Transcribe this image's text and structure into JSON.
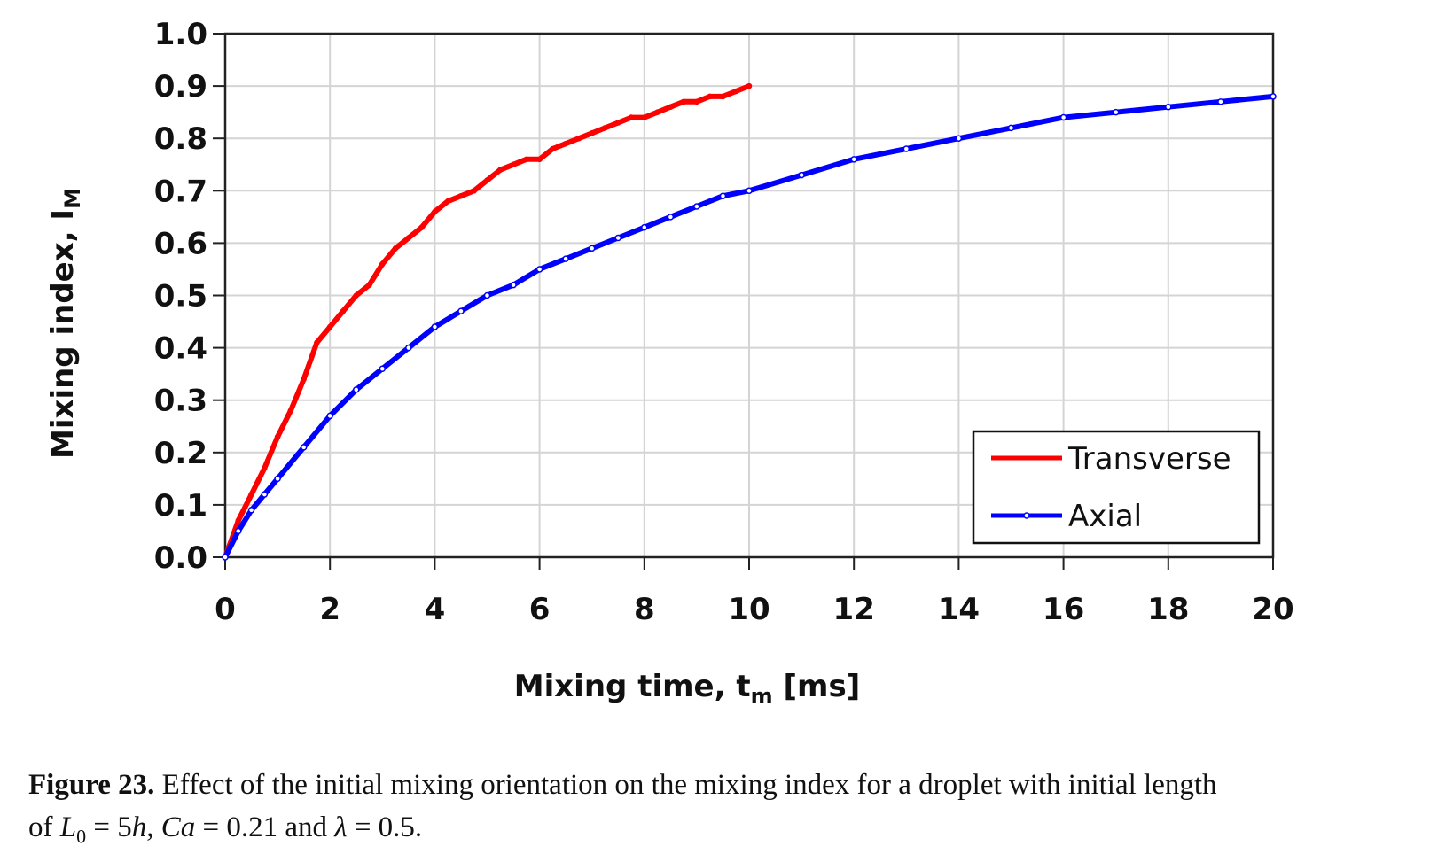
{
  "chart_data": {
    "type": "line",
    "xlabel": "Mixing time, t",
    "xlabel_sub": "m",
    "xlabel_unit": "[ms]",
    "ylabel": "Mixing index, I",
    "ylabel_sub": "M",
    "xlim": [
      0,
      20
    ],
    "ylim": [
      0,
      1.0
    ],
    "x_ticks": [
      "0",
      "2",
      "4",
      "6",
      "8",
      "10",
      "12",
      "14",
      "16",
      "18",
      "20"
    ],
    "y_ticks": [
      "0.0",
      "0.1",
      "0.2",
      "0.3",
      "0.4",
      "0.5",
      "0.6",
      "0.7",
      "0.8",
      "0.9",
      "1.0"
    ],
    "grid": true,
    "legend_position": "lower-right",
    "series": [
      {
        "name": "Transverse",
        "color": "#ff0000",
        "x": [
          0,
          0.25,
          0.5,
          0.75,
          1.0,
          1.25,
          1.5,
          1.75,
          2.0,
          2.25,
          2.5,
          2.75,
          3.0,
          3.25,
          3.5,
          3.75,
          4.0,
          4.25,
          4.5,
          4.75,
          5.0,
          5.25,
          5.5,
          5.75,
          6.0,
          6.25,
          6.5,
          6.75,
          7.0,
          7.25,
          7.5,
          7.75,
          8.0,
          8.25,
          8.5,
          8.75,
          9.0,
          9.25,
          9.5,
          9.75,
          10.0
        ],
        "y": [
          0.0,
          0.07,
          0.12,
          0.17,
          0.23,
          0.28,
          0.34,
          0.41,
          0.44,
          0.47,
          0.5,
          0.52,
          0.56,
          0.59,
          0.61,
          0.63,
          0.66,
          0.68,
          0.69,
          0.7,
          0.72,
          0.74,
          0.75,
          0.76,
          0.76,
          0.78,
          0.79,
          0.8,
          0.81,
          0.82,
          0.83,
          0.84,
          0.84,
          0.85,
          0.86,
          0.87,
          0.87,
          0.88,
          0.88,
          0.89,
          0.9
        ]
      },
      {
        "name": "Axial",
        "color": "#0000ff",
        "x": [
          0,
          0.25,
          0.5,
          0.75,
          1.0,
          1.5,
          2.0,
          2.5,
          3.0,
          3.5,
          4.0,
          4.5,
          5.0,
          5.5,
          6.0,
          6.5,
          7.0,
          7.5,
          8.0,
          8.5,
          9.0,
          9.5,
          10.0,
          11.0,
          12.0,
          13.0,
          14.0,
          15.0,
          16.0,
          17.0,
          18.0,
          19.0,
          20.0
        ],
        "y": [
          0.0,
          0.05,
          0.09,
          0.12,
          0.15,
          0.21,
          0.27,
          0.32,
          0.36,
          0.4,
          0.44,
          0.47,
          0.5,
          0.52,
          0.55,
          0.57,
          0.59,
          0.61,
          0.63,
          0.65,
          0.67,
          0.69,
          0.7,
          0.73,
          0.76,
          0.78,
          0.8,
          0.82,
          0.84,
          0.85,
          0.86,
          0.87,
          0.88
        ]
      }
    ]
  },
  "caption": {
    "label": "Figure 23.",
    "line1_text": " Effect of the initial mixing orientation on the mixing index for a droplet with initial length",
    "line2_pre": "of ",
    "L_sym": "L",
    "L_sub": "0",
    "eq1": " = 5",
    "h_sym": "h",
    "comma1": ", ",
    "ca_sym": "Ca",
    "eq2": " = 0.21 and ",
    "lambda_sym": "λ",
    "eq3": " = 0.5."
  }
}
